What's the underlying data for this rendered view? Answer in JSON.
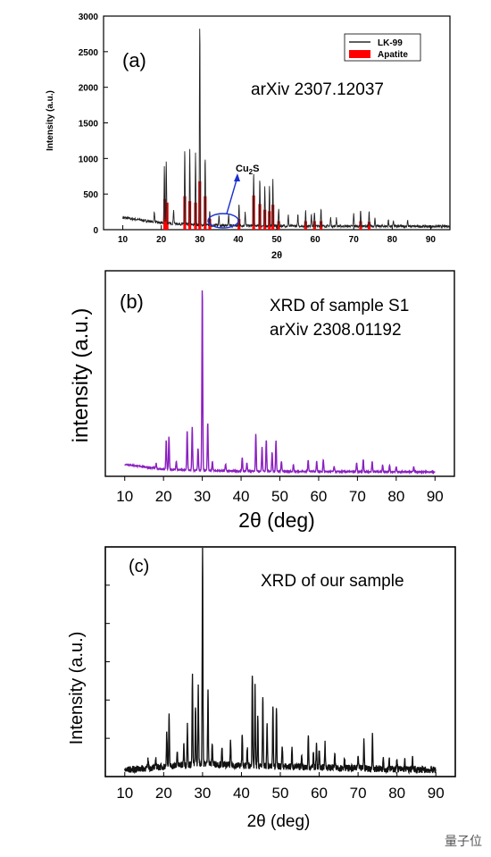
{
  "watermark": "量子位",
  "colors": {
    "lk99": "#222222",
    "apatite": "#ff0000",
    "s1": "#8a1fc0",
    "ours": "#111111",
    "cu2s_ring": "#1a2fd0"
  },
  "chart_data": [
    {
      "type": "line",
      "panel": "(a)",
      "annotation": "arXiv 2307.12037",
      "ylabel": "Intensity (a.u.)",
      "xlabel": "2θ",
      "xlim": [
        5,
        95
      ],
      "ylim": [
        0,
        3000
      ],
      "xticks": [
        10,
        20,
        30,
        40,
        50,
        60,
        70,
        80,
        90
      ],
      "yticks": [
        0,
        500,
        1000,
        1500,
        2000,
        2500,
        3000
      ],
      "legend": [
        "LK-99",
        "Apatite"
      ],
      "legend_position": "top-right",
      "callout": "Cu2S",
      "series": [
        {
          "name": "LK-99",
          "baseline": [
            [
              5,
              230
            ],
            [
              10,
              170
            ],
            [
              20,
              95
            ],
            [
              30,
              65
            ],
            [
              40,
              55
            ],
            [
              60,
              50
            ],
            [
              95,
              45
            ]
          ],
          "peaks": [
            [
              18.2,
              150
            ],
            [
              20.8,
              800
            ],
            [
              21.3,
              880
            ],
            [
              23.2,
              200
            ],
            [
              26.1,
              1050
            ],
            [
              27.4,
              1050
            ],
            [
              28.9,
              1000
            ],
            [
              30.0,
              2850
            ],
            [
              31.4,
              950
            ],
            [
              32.6,
              200
            ],
            [
              35.0,
              150
            ],
            [
              37.5,
              140
            ],
            [
              40.2,
              300
            ],
            [
              41.8,
              200
            ],
            [
              44.0,
              740
            ],
            [
              45.6,
              650
            ],
            [
              46.9,
              550
            ],
            [
              48.1,
              550
            ],
            [
              49.0,
              650
            ],
            [
              50.5,
              250
            ],
            [
              53.0,
              150
            ],
            [
              55.5,
              150
            ],
            [
              57.5,
              220
            ],
            [
              59.0,
              180
            ],
            [
              59.8,
              200
            ],
            [
              61.5,
              250
            ],
            [
              64.0,
              120
            ],
            [
              65.5,
              120
            ],
            [
              70.0,
              180
            ],
            [
              71.8,
              230
            ],
            [
              74.0,
              200
            ],
            [
              75.5,
              120
            ],
            [
              79.0,
              90
            ],
            [
              80.3,
              90
            ],
            [
              84.0,
              90
            ]
          ]
        },
        {
          "name": "Apatite",
          "sticks": [
            [
              20.9,
              430
            ],
            [
              21.5,
              380
            ],
            [
              26.1,
              470
            ],
            [
              27.4,
              400
            ],
            [
              28.9,
              380
            ],
            [
              30.0,
              680
            ],
            [
              31.4,
              470
            ],
            [
              32.6,
              150
            ],
            [
              40.2,
              150
            ],
            [
              44.0,
              480
            ],
            [
              45.6,
              360
            ],
            [
              46.9,
              280
            ],
            [
              48.1,
              260
            ],
            [
              49.0,
              350
            ],
            [
              50.5,
              120
            ],
            [
              57.5,
              120
            ],
            [
              59.8,
              120
            ],
            [
              61.5,
              120
            ],
            [
              71.8,
              120
            ],
            [
              74.0,
              110
            ]
          ]
        }
      ]
    },
    {
      "type": "line",
      "panel": "(b)",
      "annotation_lines": [
        "XRD of sample S1",
        "arXiv 2308.01192"
      ],
      "ylabel": "intensity (a.u.)",
      "xlabel": "2θ (deg)",
      "xlim": [
        5,
        95
      ],
      "ylim": [
        0,
        1.2
      ],
      "xticks": [
        10,
        20,
        30,
        40,
        50,
        60,
        70,
        80,
        90
      ],
      "series": [
        {
          "name": "",
          "baseline": [
            [
              10,
              0.07
            ],
            [
              20,
              0.04
            ],
            [
              40,
              0.03
            ],
            [
              90,
              0.025
            ]
          ],
          "peaks": [
            [
              18.1,
              0.03
            ],
            [
              20.7,
              0.17
            ],
            [
              21.4,
              0.19
            ],
            [
              23.3,
              0.05
            ],
            [
              26.1,
              0.23
            ],
            [
              27.4,
              0.25
            ],
            [
              28.9,
              0.13
            ],
            [
              30.0,
              1.07
            ],
            [
              31.4,
              0.28
            ],
            [
              32.6,
              0.05
            ],
            [
              36.0,
              0.04
            ],
            [
              40.3,
              0.08
            ],
            [
              41.5,
              0.05
            ],
            [
              43.8,
              0.22
            ],
            [
              45.4,
              0.14
            ],
            [
              46.5,
              0.18
            ],
            [
              48.0,
              0.11
            ],
            [
              49.0,
              0.18
            ],
            [
              50.4,
              0.06
            ],
            [
              53.5,
              0.04
            ],
            [
              57.3,
              0.07
            ],
            [
              59.5,
              0.06
            ],
            [
              61.2,
              0.07
            ],
            [
              64.0,
              0.03
            ],
            [
              69.8,
              0.05
            ],
            [
              71.5,
              0.07
            ],
            [
              73.8,
              0.06
            ],
            [
              76.5,
              0.04
            ],
            [
              78.3,
              0.04
            ],
            [
              80.0,
              0.03
            ],
            [
              84.5,
              0.03
            ]
          ]
        }
      ]
    },
    {
      "type": "line",
      "panel": "(c)",
      "annotation": "XRD of our sample",
      "ylabel": "Intensity (a.u.)",
      "xlabel": "2θ (deg)",
      "xlim": [
        5,
        95
      ],
      "ylim": [
        0,
        1.05
      ],
      "xticks": [
        10,
        20,
        30,
        40,
        50,
        60,
        70,
        80,
        90
      ],
      "series": [
        {
          "name": "",
          "baseline": [
            [
              10,
              0.03
            ],
            [
              30,
              0.06
            ],
            [
              40,
              0.05
            ],
            [
              90,
              0.03
            ]
          ],
          "peaks": [
            [
              16.0,
              0.04
            ],
            [
              18.0,
              0.04
            ],
            [
              20.8,
              0.17
            ],
            [
              21.4,
              0.23
            ],
            [
              23.5,
              0.07
            ],
            [
              25.2,
              0.1
            ],
            [
              26.1,
              0.18
            ],
            [
              27.4,
              0.4
            ],
            [
              28.2,
              0.26
            ],
            [
              28.9,
              0.35
            ],
            [
              30.0,
              1.0
            ],
            [
              31.4,
              0.35
            ],
            [
              32.5,
              0.1
            ],
            [
              35.0,
              0.07
            ],
            [
              37.2,
              0.1
            ],
            [
              40.2,
              0.14
            ],
            [
              41.5,
              0.08
            ],
            [
              42.8,
              0.42
            ],
            [
              43.5,
              0.36
            ],
            [
              44.2,
              0.22
            ],
            [
              45.5,
              0.32
            ],
            [
              46.6,
              0.2
            ],
            [
              48.1,
              0.28
            ],
            [
              49.0,
              0.28
            ],
            [
              50.5,
              0.1
            ],
            [
              53.0,
              0.08
            ],
            [
              55.5,
              0.06
            ],
            [
              57.2,
              0.14
            ],
            [
              58.5,
              0.07
            ],
            [
              59.3,
              0.11
            ],
            [
              60.0,
              0.08
            ],
            [
              61.5,
              0.12
            ],
            [
              64.0,
              0.06
            ],
            [
              66.5,
              0.05
            ],
            [
              70.0,
              0.06
            ],
            [
              71.5,
              0.13
            ],
            [
              73.7,
              0.15
            ],
            [
              76.5,
              0.06
            ],
            [
              78.0,
              0.05
            ],
            [
              80.0,
              0.05
            ],
            [
              82.0,
              0.04
            ],
            [
              84.0,
              0.05
            ]
          ]
        }
      ]
    }
  ]
}
